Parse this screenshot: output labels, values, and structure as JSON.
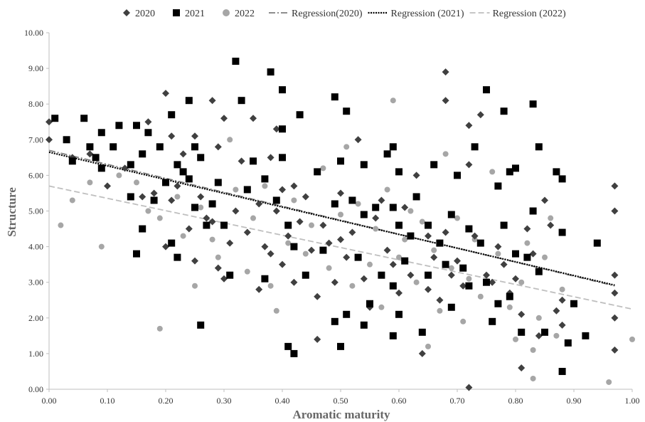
{
  "chart_data": {
    "type": "scatter",
    "xlabel": "Aromatic maturity",
    "ylabel": "Structure",
    "xlim": [
      0,
      1
    ],
    "ylim": [
      0,
      10
    ],
    "x_ticks": [
      "0.00",
      "0.10",
      "0.20",
      "0.30",
      "0.40",
      "0.50",
      "0.60",
      "0.70",
      "0.80",
      "0.90",
      "1.00"
    ],
    "y_ticks": [
      "0.00",
      "1.00",
      "2.00",
      "3.00",
      "4.00",
      "5.00",
      "6.00",
      "7.00",
      "8.00",
      "9.00",
      "10.00"
    ],
    "grid": false,
    "legend_position": "top",
    "series": [
      {
        "name": "2020",
        "marker": "diamond",
        "color": "#404040",
        "points": [
          [
            0.0,
            7.0
          ],
          [
            0.0,
            7.5
          ],
          [
            0.04,
            6.5
          ],
          [
            0.07,
            6.6
          ],
          [
            0.1,
            5.7
          ],
          [
            0.13,
            6.2
          ],
          [
            0.14,
            6.3
          ],
          [
            0.16,
            5.4
          ],
          [
            0.17,
            7.5
          ],
          [
            0.18,
            5.5
          ],
          [
            0.2,
            8.3
          ],
          [
            0.2,
            4.0
          ],
          [
            0.21,
            7.1
          ],
          [
            0.21,
            5.3
          ],
          [
            0.22,
            5.7
          ],
          [
            0.23,
            6.6
          ],
          [
            0.24,
            8.1
          ],
          [
            0.24,
            4.5
          ],
          [
            0.25,
            7.1
          ],
          [
            0.25,
            3.6
          ],
          [
            0.26,
            5.4
          ],
          [
            0.27,
            4.8
          ],
          [
            0.28,
            4.7
          ],
          [
            0.28,
            8.1
          ],
          [
            0.29,
            6.8
          ],
          [
            0.29,
            3.4
          ],
          [
            0.3,
            3.1
          ],
          [
            0.3,
            7.6
          ],
          [
            0.31,
            4.1
          ],
          [
            0.32,
            5.0
          ],
          [
            0.33,
            6.4
          ],
          [
            0.34,
            4.4
          ],
          [
            0.35,
            7.6
          ],
          [
            0.36,
            5.2
          ],
          [
            0.36,
            2.8
          ],
          [
            0.37,
            4.0
          ],
          [
            0.38,
            3.8
          ],
          [
            0.38,
            6.5
          ],
          [
            0.39,
            7.3
          ],
          [
            0.39,
            5.0
          ],
          [
            0.4,
            3.5
          ],
          [
            0.4,
            5.6
          ],
          [
            0.41,
            4.3
          ],
          [
            0.42,
            3.0
          ],
          [
            0.42,
            5.7
          ],
          [
            0.43,
            4.7
          ],
          [
            0.44,
            5.4
          ],
          [
            0.45,
            3.9
          ],
          [
            0.46,
            2.6
          ],
          [
            0.46,
            1.4
          ],
          [
            0.47,
            4.6
          ],
          [
            0.48,
            4.1
          ],
          [
            0.49,
            3.0
          ],
          [
            0.5,
            5.5
          ],
          [
            0.5,
            4.2
          ],
          [
            0.51,
            3.7
          ],
          [
            0.52,
            4.4
          ],
          [
            0.53,
            7.0
          ],
          [
            0.54,
            3.1
          ],
          [
            0.55,
            2.3
          ],
          [
            0.56,
            4.8
          ],
          [
            0.57,
            5.3
          ],
          [
            0.58,
            3.9
          ],
          [
            0.59,
            3.5
          ],
          [
            0.6,
            4.6
          ],
          [
            0.6,
            2.7
          ],
          [
            0.61,
            5.1
          ],
          [
            0.62,
            3.2
          ],
          [
            0.63,
            6.0
          ],
          [
            0.64,
            1.0
          ],
          [
            0.65,
            4.3
          ],
          [
            0.65,
            2.8
          ],
          [
            0.66,
            3.7
          ],
          [
            0.67,
            2.5
          ],
          [
            0.68,
            8.9
          ],
          [
            0.68,
            8.1
          ],
          [
            0.68,
            4.4
          ],
          [
            0.69,
            3.2
          ],
          [
            0.7,
            3.6
          ],
          [
            0.71,
            2.9
          ],
          [
            0.72,
            6.3
          ],
          [
            0.72,
            7.4
          ],
          [
            0.72,
            0.05
          ],
          [
            0.73,
            4.3
          ],
          [
            0.74,
            7.7
          ],
          [
            0.75,
            3.2
          ],
          [
            0.76,
            3.0
          ],
          [
            0.77,
            4.0
          ],
          [
            0.78,
            3.5
          ],
          [
            0.78,
            7.8
          ],
          [
            0.79,
            2.7
          ],
          [
            0.8,
            3.1
          ],
          [
            0.81,
            2.1
          ],
          [
            0.81,
            0.6
          ],
          [
            0.82,
            4.5
          ],
          [
            0.83,
            3.8
          ],
          [
            0.84,
            1.5
          ],
          [
            0.85,
            5.3
          ],
          [
            0.86,
            4.6
          ],
          [
            0.87,
            2.2
          ],
          [
            0.88,
            2.5
          ],
          [
            0.88,
            1.8
          ],
          [
            0.97,
            5.7
          ],
          [
            0.97,
            5.0
          ],
          [
            0.97,
            3.2
          ],
          [
            0.97,
            2.7
          ],
          [
            0.97,
            2.0
          ],
          [
            0.97,
            1.1
          ]
        ]
      },
      {
        "name": "2021",
        "marker": "square",
        "color": "#000000",
        "points": [
          [
            0.01,
            7.6
          ],
          [
            0.03,
            7.0
          ],
          [
            0.04,
            6.4
          ],
          [
            0.06,
            7.6
          ],
          [
            0.07,
            6.8
          ],
          [
            0.08,
            6.5
          ],
          [
            0.09,
            7.2
          ],
          [
            0.09,
            6.2
          ],
          [
            0.11,
            6.8
          ],
          [
            0.12,
            7.4
          ],
          [
            0.14,
            6.3
          ],
          [
            0.14,
            5.4
          ],
          [
            0.15,
            7.4
          ],
          [
            0.15,
            3.8
          ],
          [
            0.16,
            6.6
          ],
          [
            0.16,
            4.5
          ],
          [
            0.17,
            7.2
          ],
          [
            0.18,
            5.3
          ],
          [
            0.19,
            6.8
          ],
          [
            0.2,
            5.8
          ],
          [
            0.21,
            7.7
          ],
          [
            0.21,
            4.1
          ],
          [
            0.22,
            6.3
          ],
          [
            0.22,
            3.7
          ],
          [
            0.23,
            6.1
          ],
          [
            0.24,
            5.9
          ],
          [
            0.24,
            8.1
          ],
          [
            0.25,
            6.8
          ],
          [
            0.25,
            5.1
          ],
          [
            0.26,
            6.5
          ],
          [
            0.26,
            1.8
          ],
          [
            0.27,
            4.6
          ],
          [
            0.28,
            5.2
          ],
          [
            0.29,
            5.8
          ],
          [
            0.3,
            4.6
          ],
          [
            0.31,
            3.2
          ],
          [
            0.32,
            9.2
          ],
          [
            0.33,
            8.1
          ],
          [
            0.34,
            5.6
          ],
          [
            0.35,
            6.4
          ],
          [
            0.37,
            3.1
          ],
          [
            0.37,
            5.9
          ],
          [
            0.38,
            8.9
          ],
          [
            0.39,
            5.3
          ],
          [
            0.4,
            8.4
          ],
          [
            0.4,
            7.3
          ],
          [
            0.4,
            6.5
          ],
          [
            0.41,
            4.6
          ],
          [
            0.41,
            1.2
          ],
          [
            0.42,
            4.0
          ],
          [
            0.42,
            1.0
          ],
          [
            0.43,
            7.7
          ],
          [
            0.44,
            3.2
          ],
          [
            0.46,
            6.1
          ],
          [
            0.47,
            3.9
          ],
          [
            0.49,
            8.2
          ],
          [
            0.49,
            5.2
          ],
          [
            0.49,
            1.9
          ],
          [
            0.5,
            6.4
          ],
          [
            0.5,
            1.2
          ],
          [
            0.51,
            7.8
          ],
          [
            0.51,
            2.1
          ],
          [
            0.52,
            5.3
          ],
          [
            0.53,
            3.7
          ],
          [
            0.54,
            6.3
          ],
          [
            0.54,
            4.9
          ],
          [
            0.54,
            1.8
          ],
          [
            0.55,
            2.4
          ],
          [
            0.56,
            5.1
          ],
          [
            0.57,
            3.2
          ],
          [
            0.58,
            6.6
          ],
          [
            0.59,
            6.8
          ],
          [
            0.59,
            5.1
          ],
          [
            0.59,
            2.9
          ],
          [
            0.59,
            1.5
          ],
          [
            0.6,
            6.1
          ],
          [
            0.6,
            4.6
          ],
          [
            0.6,
            2.1
          ],
          [
            0.61,
            3.6
          ],
          [
            0.62,
            4.3
          ],
          [
            0.63,
            5.4
          ],
          [
            0.64,
            1.6
          ],
          [
            0.65,
            4.6
          ],
          [
            0.65,
            3.2
          ],
          [
            0.66,
            6.3
          ],
          [
            0.67,
            4.1
          ],
          [
            0.68,
            3.5
          ],
          [
            0.69,
            4.9
          ],
          [
            0.69,
            2.3
          ],
          [
            0.7,
            6.0
          ],
          [
            0.71,
            3.4
          ],
          [
            0.72,
            4.5
          ],
          [
            0.72,
            2.9
          ],
          [
            0.73,
            6.8
          ],
          [
            0.74,
            4.1
          ],
          [
            0.75,
            8.4
          ],
          [
            0.75,
            3.0
          ],
          [
            0.76,
            1.9
          ],
          [
            0.77,
            5.7
          ],
          [
            0.77,
            2.4
          ],
          [
            0.78,
            7.8
          ],
          [
            0.78,
            4.6
          ],
          [
            0.79,
            6.1
          ],
          [
            0.79,
            2.6
          ],
          [
            0.8,
            6.2
          ],
          [
            0.8,
            3.8
          ],
          [
            0.81,
            1.6
          ],
          [
            0.82,
            3.7
          ],
          [
            0.83,
            8.0
          ],
          [
            0.83,
            5.0
          ],
          [
            0.84,
            6.8
          ],
          [
            0.84,
            3.3
          ],
          [
            0.85,
            1.6
          ],
          [
            0.87,
            6.1
          ],
          [
            0.88,
            5.9
          ],
          [
            0.88,
            4.4
          ],
          [
            0.88,
            0.5
          ],
          [
            0.89,
            1.3
          ],
          [
            0.9,
            2.4
          ],
          [
            0.92,
            1.5
          ],
          [
            0.94,
            4.1
          ]
        ]
      },
      {
        "name": "2022",
        "marker": "circle",
        "color": "#a6a6a6",
        "points": [
          [
            0.02,
            4.6
          ],
          [
            0.04,
            5.3
          ],
          [
            0.07,
            5.8
          ],
          [
            0.09,
            4.0
          ],
          [
            0.12,
            6.0
          ],
          [
            0.15,
            5.8
          ],
          [
            0.17,
            5.0
          ],
          [
            0.19,
            1.7
          ],
          [
            0.19,
            4.8
          ],
          [
            0.22,
            5.4
          ],
          [
            0.23,
            4.3
          ],
          [
            0.25,
            2.9
          ],
          [
            0.26,
            5.1
          ],
          [
            0.28,
            4.2
          ],
          [
            0.29,
            3.7
          ],
          [
            0.31,
            7.0
          ],
          [
            0.32,
            5.6
          ],
          [
            0.34,
            3.3
          ],
          [
            0.35,
            4.8
          ],
          [
            0.37,
            5.7
          ],
          [
            0.38,
            2.9
          ],
          [
            0.39,
            2.2
          ],
          [
            0.41,
            4.1
          ],
          [
            0.42,
            5.3
          ],
          [
            0.44,
            3.8
          ],
          [
            0.45,
            4.6
          ],
          [
            0.47,
            6.2
          ],
          [
            0.48,
            3.4
          ],
          [
            0.5,
            4.9
          ],
          [
            0.51,
            6.8
          ],
          [
            0.52,
            2.9
          ],
          [
            0.53,
            5.2
          ],
          [
            0.55,
            3.5
          ],
          [
            0.56,
            4.5
          ],
          [
            0.57,
            2.3
          ],
          [
            0.58,
            5.6
          ],
          [
            0.59,
            8.1
          ],
          [
            0.6,
            3.7
          ],
          [
            0.61,
            4.2
          ],
          [
            0.62,
            5.0
          ],
          [
            0.63,
            3.0
          ],
          [
            0.64,
            4.7
          ],
          [
            0.65,
            1.2
          ],
          [
            0.66,
            3.9
          ],
          [
            0.67,
            2.2
          ],
          [
            0.68,
            6.6
          ],
          [
            0.69,
            3.4
          ],
          [
            0.7,
            4.8
          ],
          [
            0.71,
            1.9
          ],
          [
            0.72,
            3.1
          ],
          [
            0.73,
            4.2
          ],
          [
            0.74,
            2.6
          ],
          [
            0.76,
            6.1
          ],
          [
            0.76,
            1.9
          ],
          [
            0.77,
            3.8
          ],
          [
            0.79,
            2.3
          ],
          [
            0.8,
            1.4
          ],
          [
            0.81,
            3.0
          ],
          [
            0.82,
            4.1
          ],
          [
            0.83,
            1.1
          ],
          [
            0.83,
            0.3
          ],
          [
            0.84,
            2.0
          ],
          [
            0.85,
            3.7
          ],
          [
            0.86,
            4.8
          ],
          [
            0.87,
            1.5
          ],
          [
            0.88,
            2.8
          ],
          [
            0.96,
            0.2
          ],
          [
            1.0,
            1.4
          ]
        ]
      }
    ],
    "trendlines": [
      {
        "name": "Regression(2020)",
        "style": "dash-dot",
        "color": "#7f7f7f",
        "x": [
          0.0,
          0.97
        ],
        "y": [
          6.7,
          2.9
        ]
      },
      {
        "name": "Regression (2021)",
        "style": "dotted",
        "color": "#000000",
        "x": [
          0.0,
          0.97
        ],
        "y": [
          6.65,
          2.92
        ]
      },
      {
        "name": "Regression (2022)",
        "style": "dashed",
        "color": "#bfbfbf",
        "x": [
          0.0,
          1.0
        ],
        "y": [
          5.7,
          2.25
        ]
      }
    ]
  }
}
